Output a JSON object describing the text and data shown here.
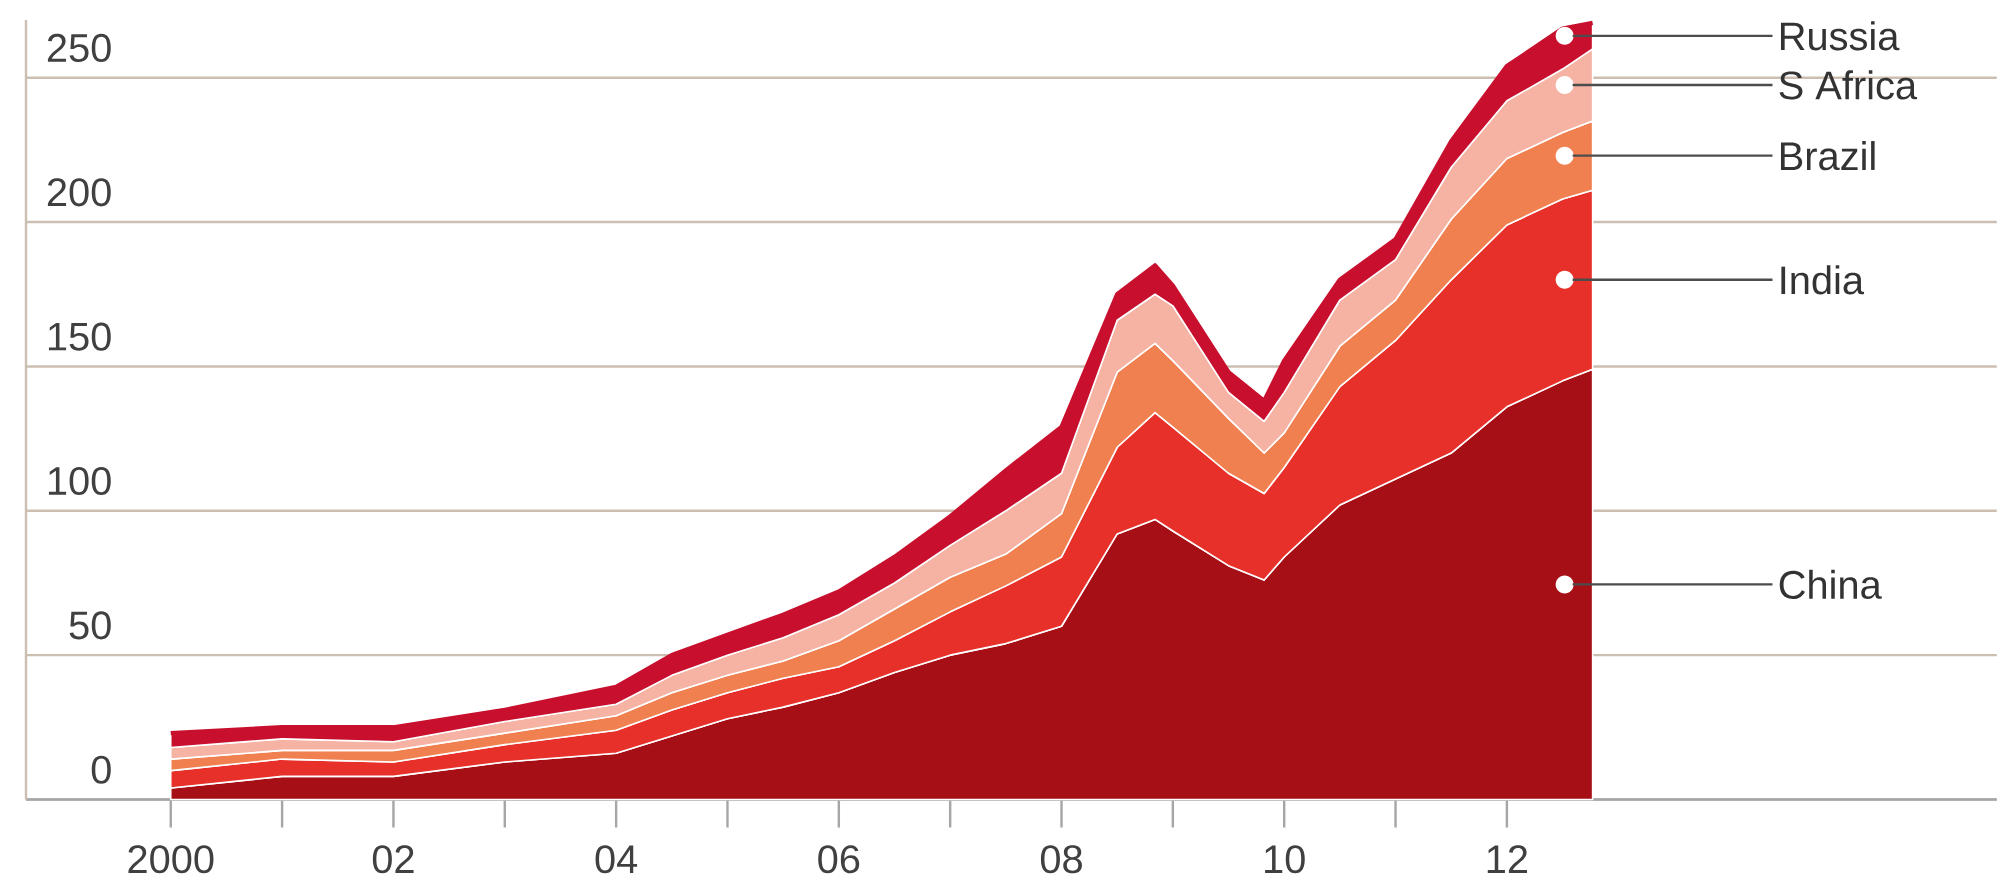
{
  "chart_data": {
    "type": "area",
    "stacked": true,
    "x": [
      2000,
      2001,
      2002,
      2003,
      2004,
      2004.5,
      2005,
      2005.5,
      2006,
      2006.5,
      2007,
      2007.5,
      2008,
      2008.5,
      2008.84,
      2009,
      2009.5,
      2009.82,
      2010,
      2010.5,
      2011,
      2011.5,
      2012,
      2012.5,
      2012.77
    ],
    "series": [
      {
        "name": "China",
        "color": "#a50f15",
        "values": [
          4,
          8,
          8,
          13,
          16,
          22,
          28,
          32,
          37,
          44,
          50,
          54,
          60,
          92,
          97,
          93,
          81,
          76,
          84,
          102,
          111,
          120,
          136,
          145,
          149
        ]
      },
      {
        "name": "India",
        "color": "#e8302a",
        "values": [
          6,
          6,
          5,
          6,
          8,
          9,
          9,
          10,
          9,
          11,
          15,
          20,
          24,
          30,
          37,
          36,
          32,
          30,
          31,
          41,
          48,
          60,
          63,
          63,
          62
        ]
      },
      {
        "name": "Brazil",
        "color": "#f08050",
        "values": [
          4,
          3,
          4,
          4,
          5,
          6,
          6,
          6,
          9,
          11,
          12,
          11,
          15,
          26,
          24,
          23,
          19,
          14,
          12,
          14,
          14,
          21,
          23,
          23,
          24
        ]
      },
      {
        "name": "S Africa",
        "color": "#f6b3a4",
        "values": [
          4,
          4,
          3,
          4,
          4,
          6,
          7,
          8,
          9,
          9,
          11,
          15,
          14,
          18,
          17,
          19,
          9,
          11,
          14,
          16,
          14,
          18,
          20,
          22,
          25
        ]
      },
      {
        "name": "Russia",
        "color": "#c8102e",
        "values": [
          5,
          4,
          5,
          4,
          6,
          7,
          7,
          8,
          8,
          9,
          10,
          14,
          16,
          9,
          10,
          7,
          7,
          7,
          11,
          7,
          7,
          9,
          12,
          14,
          9
        ]
      }
    ],
    "xlim": [
      1998.7,
      2016.4
    ],
    "xticks": [
      2000,
      {
        "value": 2001,
        "label": null
      },
      {
        "value": 2002,
        "label": "02"
      },
      {
        "value": 2003,
        "label": null
      },
      {
        "value": 2004,
        "label": "04"
      },
      {
        "value": 2005,
        "label": null
      },
      {
        "value": 2006,
        "label": "06"
      },
      {
        "value": 2007,
        "label": null
      },
      {
        "value": 2008,
        "label": "08"
      },
      {
        "value": 2009,
        "label": null
      },
      {
        "value": 2010,
        "label": "10"
      },
      {
        "value": 2011,
        "label": null
      },
      {
        "value": 2012,
        "label": "12"
      }
    ],
    "ylim": [
      0,
      270
    ],
    "yticks": [
      0,
      50,
      100,
      150,
      200,
      250
    ],
    "grid": "y"
  }
}
